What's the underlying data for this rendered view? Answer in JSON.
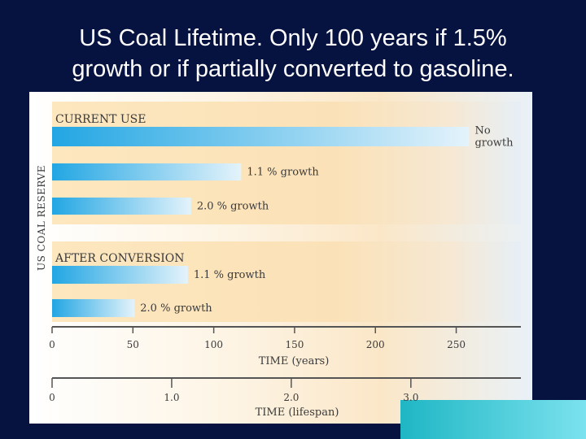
{
  "slide": {
    "title_line1": "US Coal Lifetime.  Only 100 years if 1.5%",
    "title_line2": "growth or if partially converted to gasoline."
  },
  "chart_data": {
    "type": "bar",
    "orientation": "horizontal",
    "ylabel": "US COAL RESERVE",
    "groups": [
      {
        "title": "CURRENT USE",
        "bars": [
          {
            "label_lines": [
              "No",
              "growth"
            ],
            "value": 258
          },
          {
            "label_lines": [
              "1.1 % growth"
            ],
            "value": 117
          },
          {
            "label_lines": [
              "2.0 % growth"
            ],
            "value": 86
          }
        ]
      },
      {
        "title": "AFTER CONVERSION",
        "bars": [
          {
            "label_lines": [
              "1.1 % growth"
            ],
            "value": 84
          },
          {
            "label_lines": [
              "2.0 % growth"
            ],
            "value": 51
          }
        ]
      }
    ],
    "axes": [
      {
        "xlabel": "TIME (years)",
        "ticks": [
          0,
          50,
          100,
          150,
          200,
          250
        ],
        "tick_labels": [
          "0",
          "50",
          "100",
          "150",
          "200",
          "250"
        ],
        "range": [
          0,
          290
        ]
      },
      {
        "xlabel": "TIME (lifespan)",
        "ticks": [
          0,
          1,
          2,
          3
        ],
        "tick_labels": [
          "0",
          "1.0",
          "2.0",
          "3.0"
        ],
        "range": [
          0,
          3.92
        ]
      }
    ],
    "colors": {
      "bar_start": "#22a6e3",
      "bar_end": "#e4f3fb",
      "axis": "#555555",
      "text": "#3a3a3a"
    }
  }
}
